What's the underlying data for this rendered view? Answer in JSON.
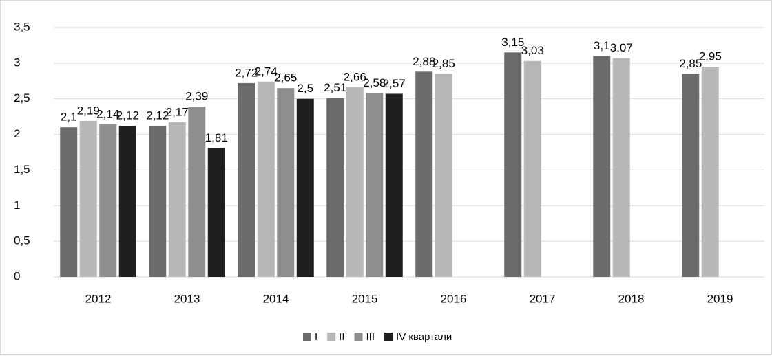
{
  "chart_data": {
    "type": "bar",
    "categories": [
      "2012",
      "2013",
      "2014",
      "2015",
      "2016",
      "2017",
      "2018",
      "2019"
    ],
    "series": [
      {
        "name": "I",
        "color": "#6b6b6b",
        "values": [
          2.1,
          2.12,
          2.72,
          2.51,
          2.88,
          3.15,
          3.1,
          2.85
        ],
        "value_labels": [
          "2,1",
          "2,12",
          "2,72",
          "2,51",
          "2,88",
          "3,15",
          "3,1",
          "2,85"
        ]
      },
      {
        "name": "II",
        "color": "#b7b7b7",
        "values": [
          2.19,
          2.17,
          2.74,
          2.66,
          2.85,
          3.03,
          3.07,
          2.95
        ],
        "value_labels": [
          "2,19",
          "2,17",
          "2,74",
          "2,66",
          "2,85",
          "3,03",
          "3,07",
          "2,95"
        ]
      },
      {
        "name": "III",
        "color": "#8e8e8e",
        "values": [
          2.14,
          2.39,
          2.65,
          2.58,
          null,
          null,
          null,
          null
        ],
        "value_labels": [
          "2,14",
          "2,39",
          "2,65",
          "2,58",
          null,
          null,
          null,
          null
        ]
      },
      {
        "name": "IV квартали",
        "color": "#1f1f1f",
        "values": [
          2.12,
          1.81,
          2.5,
          2.57,
          null,
          null,
          null,
          null
        ],
        "value_labels": [
          "2,12",
          "1,81",
          "2,5",
          "2,57",
          null,
          null,
          null,
          null
        ]
      }
    ],
    "ylim": [
      0,
      3.5
    ],
    "yticks": [
      0,
      {
        "value": 0.5,
        "label": "0,5"
      },
      1,
      {
        "value": 1.5,
        "label": "1,5"
      },
      2,
      {
        "value": 2.5,
        "label": "2,5"
      },
      3,
      {
        "value": 3.5,
        "label": "3,5"
      }
    ],
    "grid": true,
    "legend": "bottom"
  }
}
